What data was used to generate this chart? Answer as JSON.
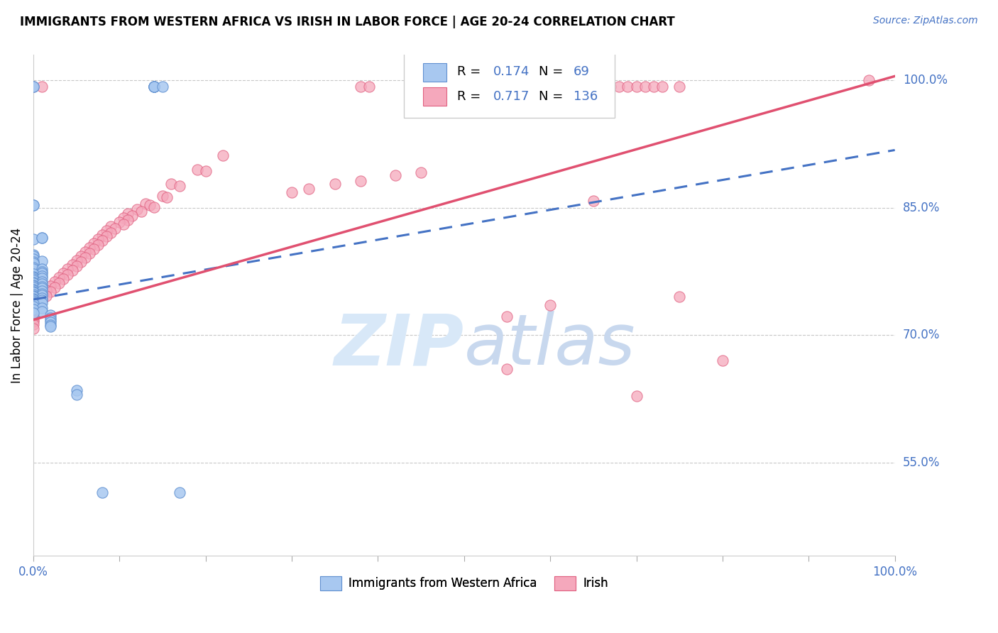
{
  "title": "IMMIGRANTS FROM WESTERN AFRICA VS IRISH IN LABOR FORCE | AGE 20-24 CORRELATION CHART",
  "source": "Source: ZipAtlas.com",
  "ylabel": "In Labor Force | Age 20-24",
  "xlim": [
    0.0,
    1.0
  ],
  "ylim": [
    0.44,
    1.03
  ],
  "ytick_labels_right": [
    "100.0%",
    "85.0%",
    "70.0%",
    "55.0%"
  ],
  "ytick_values_right": [
    1.0,
    0.85,
    0.7,
    0.55
  ],
  "color_blue": "#A8C8F0",
  "color_pink": "#F5A8BC",
  "color_blue_edge": "#6090D0",
  "color_pink_edge": "#E06080",
  "color_blue_text": "#4472C4",
  "color_pink_line": "#E05070",
  "watermark_zip": "ZIP",
  "watermark_atlas": "atlas",
  "watermark_color": "#D8E8F8",
  "background_color": "#FFFFFF",
  "grid_color": "#C8C8C8",
  "legend_label_blue": "Immigrants from Western Africa",
  "legend_label_pink": "Irish",
  "blue_line_x0": 0.0,
  "blue_line_x1": 1.0,
  "blue_line_y0": 0.742,
  "blue_line_y1": 0.918,
  "pink_line_x0": 0.0,
  "pink_line_x1": 1.0,
  "pink_line_y0": 0.718,
  "pink_line_y1": 1.005,
  "blue_scatter": [
    [
      0.0,
      0.993
    ],
    [
      0.0,
      0.993
    ],
    [
      0.14,
      0.993
    ],
    [
      0.14,
      0.993
    ],
    [
      0.14,
      0.993
    ],
    [
      0.14,
      0.993
    ],
    [
      0.14,
      0.993
    ],
    [
      0.15,
      0.993
    ],
    [
      0.0,
      0.853
    ],
    [
      0.0,
      0.853
    ],
    [
      0.0,
      0.813
    ],
    [
      0.01,
      0.815
    ],
    [
      0.01,
      0.815
    ],
    [
      0.0,
      0.795
    ],
    [
      0.0,
      0.793
    ],
    [
      0.0,
      0.79
    ],
    [
      0.01,
      0.787
    ],
    [
      0.0,
      0.786
    ],
    [
      0.0,
      0.785
    ],
    [
      0.0,
      0.78
    ],
    [
      0.0,
      0.778
    ],
    [
      0.01,
      0.778
    ],
    [
      0.01,
      0.775
    ],
    [
      0.01,
      0.773
    ],
    [
      0.0,
      0.772
    ],
    [
      0.01,
      0.77
    ],
    [
      0.0,
      0.769
    ],
    [
      0.0,
      0.768
    ],
    [
      0.01,
      0.767
    ],
    [
      0.0,
      0.766
    ],
    [
      0.0,
      0.765
    ],
    [
      0.01,
      0.763
    ],
    [
      0.0,
      0.762
    ],
    [
      0.0,
      0.761
    ],
    [
      0.01,
      0.76
    ],
    [
      0.0,
      0.759
    ],
    [
      0.0,
      0.758
    ],
    [
      0.01,
      0.757
    ],
    [
      0.0,
      0.756
    ],
    [
      0.01,
      0.755
    ],
    [
      0.0,
      0.754
    ],
    [
      0.0,
      0.753
    ],
    [
      0.01,
      0.752
    ],
    [
      0.0,
      0.751
    ],
    [
      0.0,
      0.75
    ],
    [
      0.01,
      0.749
    ],
    [
      0.0,
      0.748
    ],
    [
      0.01,
      0.747
    ],
    [
      0.0,
      0.746
    ],
    [
      0.0,
      0.745
    ],
    [
      0.01,
      0.744
    ],
    [
      0.0,
      0.743
    ],
    [
      0.0,
      0.742
    ],
    [
      0.01,
      0.741
    ],
    [
      0.0,
      0.74
    ],
    [
      0.0,
      0.739
    ],
    [
      0.01,
      0.738
    ],
    [
      0.0,
      0.737
    ],
    [
      0.0,
      0.734
    ],
    [
      0.01,
      0.732
    ],
    [
      0.0,
      0.73
    ],
    [
      0.01,
      0.728
    ],
    [
      0.0,
      0.726
    ],
    [
      0.02,
      0.724
    ],
    [
      0.02,
      0.72
    ],
    [
      0.02,
      0.718
    ],
    [
      0.02,
      0.715
    ],
    [
      0.02,
      0.712
    ],
    [
      0.02,
      0.71
    ],
    [
      0.05,
      0.635
    ],
    [
      0.05,
      0.63
    ],
    [
      0.08,
      0.515
    ],
    [
      0.17,
      0.515
    ]
  ],
  "pink_scatter": [
    [
      0.97,
      1.0
    ],
    [
      0.63,
      0.993
    ],
    [
      0.64,
      0.993
    ],
    [
      0.65,
      0.993
    ],
    [
      0.66,
      0.993
    ],
    [
      0.67,
      0.993
    ],
    [
      0.68,
      0.993
    ],
    [
      0.69,
      0.993
    ],
    [
      0.7,
      0.993
    ],
    [
      0.71,
      0.993
    ],
    [
      0.72,
      0.993
    ],
    [
      0.73,
      0.993
    ],
    [
      0.75,
      0.993
    ],
    [
      0.47,
      0.993
    ],
    [
      0.48,
      0.993
    ],
    [
      0.49,
      0.993
    ],
    [
      0.5,
      0.993
    ],
    [
      0.51,
      0.993
    ],
    [
      0.52,
      0.993
    ],
    [
      0.53,
      0.993
    ],
    [
      0.38,
      0.993
    ],
    [
      0.39,
      0.993
    ],
    [
      0.0,
      0.993
    ],
    [
      0.01,
      0.993
    ],
    [
      0.22,
      0.912
    ],
    [
      0.19,
      0.895
    ],
    [
      0.2,
      0.893
    ],
    [
      0.16,
      0.878
    ],
    [
      0.17,
      0.876
    ],
    [
      0.15,
      0.864
    ],
    [
      0.155,
      0.862
    ],
    [
      0.13,
      0.855
    ],
    [
      0.135,
      0.853
    ],
    [
      0.14,
      0.851
    ],
    [
      0.12,
      0.848
    ],
    [
      0.125,
      0.846
    ],
    [
      0.11,
      0.843
    ],
    [
      0.115,
      0.841
    ],
    [
      0.105,
      0.838
    ],
    [
      0.11,
      0.836
    ],
    [
      0.1,
      0.833
    ],
    [
      0.105,
      0.831
    ],
    [
      0.09,
      0.828
    ],
    [
      0.095,
      0.826
    ],
    [
      0.085,
      0.823
    ],
    [
      0.09,
      0.821
    ],
    [
      0.08,
      0.818
    ],
    [
      0.085,
      0.816
    ],
    [
      0.075,
      0.813
    ],
    [
      0.08,
      0.811
    ],
    [
      0.07,
      0.808
    ],
    [
      0.075,
      0.806
    ],
    [
      0.065,
      0.803
    ],
    [
      0.07,
      0.801
    ],
    [
      0.06,
      0.798
    ],
    [
      0.065,
      0.796
    ],
    [
      0.055,
      0.793
    ],
    [
      0.06,
      0.791
    ],
    [
      0.05,
      0.788
    ],
    [
      0.055,
      0.786
    ],
    [
      0.045,
      0.783
    ],
    [
      0.05,
      0.781
    ],
    [
      0.04,
      0.778
    ],
    [
      0.045,
      0.776
    ],
    [
      0.035,
      0.773
    ],
    [
      0.04,
      0.771
    ],
    [
      0.03,
      0.768
    ],
    [
      0.035,
      0.766
    ],
    [
      0.025,
      0.763
    ],
    [
      0.03,
      0.761
    ],
    [
      0.02,
      0.758
    ],
    [
      0.025,
      0.756
    ],
    [
      0.015,
      0.753
    ],
    [
      0.02,
      0.751
    ],
    [
      0.01,
      0.748
    ],
    [
      0.015,
      0.746
    ],
    [
      0.005,
      0.743
    ],
    [
      0.01,
      0.741
    ],
    [
      0.0,
      0.738
    ],
    [
      0.005,
      0.736
    ],
    [
      0.0,
      0.733
    ],
    [
      0.0,
      0.731
    ],
    [
      0.0,
      0.728
    ],
    [
      0.0,
      0.726
    ],
    [
      0.0,
      0.723
    ],
    [
      0.0,
      0.721
    ],
    [
      0.0,
      0.718
    ],
    [
      0.0,
      0.716
    ],
    [
      0.0,
      0.713
    ],
    [
      0.0,
      0.708
    ],
    [
      0.3,
      0.868
    ],
    [
      0.32,
      0.872
    ],
    [
      0.35,
      0.878
    ],
    [
      0.38,
      0.882
    ],
    [
      0.42,
      0.888
    ],
    [
      0.45,
      0.892
    ],
    [
      0.55,
      0.722
    ],
    [
      0.6,
      0.735
    ],
    [
      0.7,
      0.628
    ],
    [
      0.75,
      0.745
    ],
    [
      0.55,
      0.66
    ],
    [
      0.65,
      0.858
    ],
    [
      0.8,
      0.67
    ]
  ]
}
